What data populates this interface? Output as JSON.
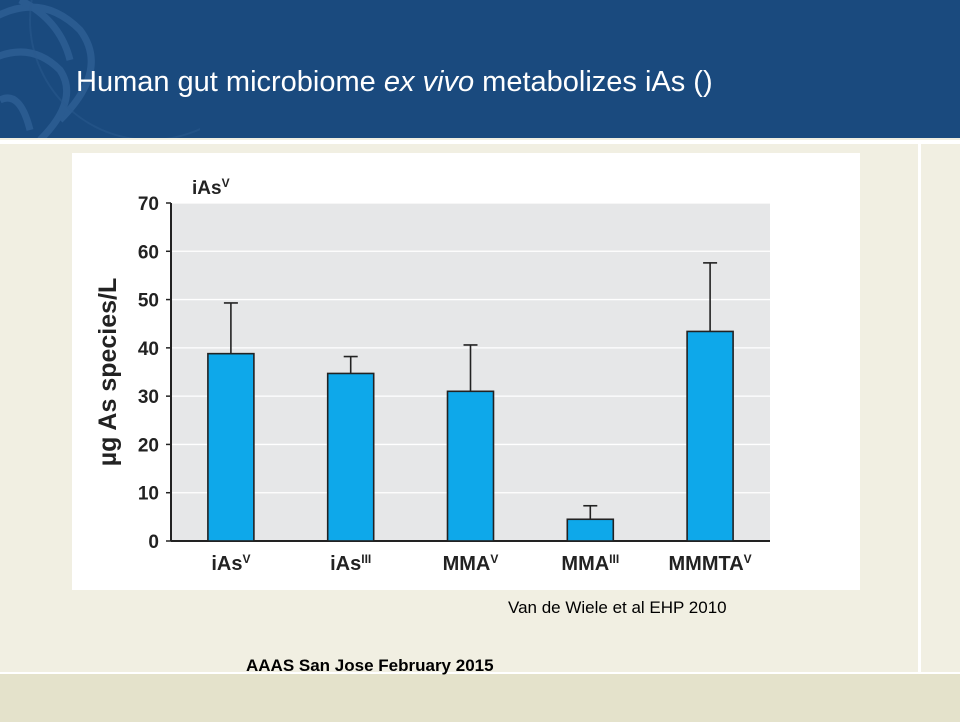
{
  "slide": {
    "title_pre": "Human gut microbiome ",
    "title_italic": "ex vivo",
    "title_post": " metabolizes iAs ()",
    "citation": "Van de Wiele et al EHP 2010",
    "footer": "AAAS San Jose February 2015"
  },
  "colors": {
    "header": "#1a4a7e",
    "background": "#f1efe2",
    "bar": "#0ea8ea",
    "plot_bg": "#e6e7e8"
  },
  "chart_data": {
    "type": "bar",
    "title": "",
    "panel_label": "iAsV",
    "ylabel": "µg As species/L",
    "xlabel": "",
    "ylim": [
      0,
      70
    ],
    "yticks": [
      0,
      10,
      20,
      30,
      40,
      50,
      60,
      70
    ],
    "grid": true,
    "categories": [
      {
        "base": "iAs",
        "sup": "V"
      },
      {
        "base": "iAs",
        "sup": "III"
      },
      {
        "base": "MMA",
        "sup": "V"
      },
      {
        "base": "MMA",
        "sup": "III"
      },
      {
        "base": "MMMTA",
        "sup": "V"
      }
    ],
    "values": [
      38.8,
      34.7,
      31.0,
      4.5,
      43.4
    ],
    "error_upper": [
      10.5,
      3.5,
      9.6,
      2.8,
      14.2
    ]
  }
}
